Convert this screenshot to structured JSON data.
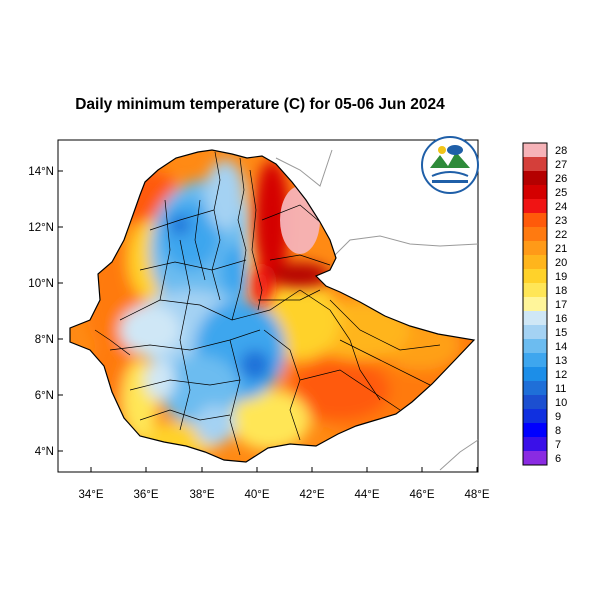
{
  "title": "Daily minimum temperature (C) for 05-06 Jun 2024",
  "map": {
    "lat_ticks": [
      "14°N",
      "12°N",
      "10°N",
      "8°N",
      "6°N",
      "4°N"
    ],
    "lon_ticks": [
      "34°E",
      "36°E",
      "38°E",
      "40°E",
      "42°E",
      "44°E",
      "46°E",
      "48°E"
    ],
    "lat_range": [
      3.2,
      15.0
    ],
    "lon_range": [
      32.8,
      48.2
    ],
    "logo_label": "Ethiopian Meteorology Institute"
  },
  "colorbar": {
    "levels": [
      "28",
      "27",
      "26",
      "25",
      "24",
      "23",
      "22",
      "21",
      "20",
      "19",
      "18",
      "17",
      "16",
      "15",
      "14",
      "13",
      "12",
      "11",
      "10",
      "9",
      "8",
      "7",
      "6"
    ],
    "colors": [
      "#f6b3b8",
      "#d43f3a",
      "#b40000",
      "#d40000",
      "#f01414",
      "#ff5a0a",
      "#ff7a10",
      "#ff9a18",
      "#ffb51c",
      "#ffd22a",
      "#ffe657",
      "#fff59a",
      "#cfe7f6",
      "#a4d2f3",
      "#6cbcf0",
      "#3ea6ee",
      "#1c8ee8",
      "#1f6fd8",
      "#1c4fd0",
      "#1030e0",
      "#0000ff",
      "#3a10e8",
      "#8a2be2"
    ]
  }
}
